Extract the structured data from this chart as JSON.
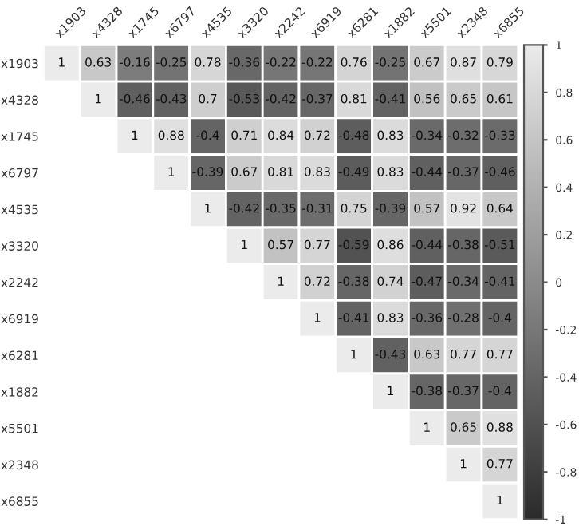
{
  "chart_data": {
    "type": "heatmap",
    "categories": [
      "x1903",
      "x4328",
      "x1745",
      "x6797",
      "x4535",
      "x3320",
      "x2242",
      "x6919",
      "x6281",
      "x1882",
      "x5501",
      "x2348",
      "x6855"
    ],
    "y_categories": [
      "x1903",
      "x4328",
      "x1745",
      "x6797",
      "x4535",
      "x3320",
      "x2242",
      "x6919",
      "x6281",
      "x1882",
      "x5501",
      "x2348",
      "x6855"
    ],
    "cells": [
      [
        1,
        0.63,
        -0.16,
        -0.25,
        0.78,
        -0.36,
        -0.22,
        -0.22,
        0.76,
        -0.25,
        0.67,
        0.87,
        0.79
      ],
      [
        null,
        1,
        -0.46,
        -0.43,
        0.7,
        -0.53,
        -0.42,
        -0.37,
        0.81,
        -0.41,
        0.56,
        0.65,
        0.61
      ],
      [
        null,
        null,
        1,
        0.88,
        -0.4,
        0.71,
        0.84,
        0.72,
        -0.48,
        0.83,
        -0.34,
        -0.32,
        -0.33
      ],
      [
        null,
        null,
        null,
        1,
        -0.39,
        0.67,
        0.81,
        0.83,
        -0.49,
        0.83,
        -0.44,
        -0.37,
        -0.46
      ],
      [
        null,
        null,
        null,
        null,
        1,
        -0.42,
        -0.35,
        -0.31,
        0.75,
        -0.39,
        0.57,
        0.92,
        0.64
      ],
      [
        null,
        null,
        null,
        null,
        null,
        1,
        0.57,
        0.77,
        -0.59,
        0.86,
        -0.44,
        -0.38,
        -0.51
      ],
      [
        null,
        null,
        null,
        null,
        null,
        null,
        1,
        0.72,
        -0.38,
        0.74,
        -0.47,
        -0.34,
        -0.41
      ],
      [
        null,
        null,
        null,
        null,
        null,
        null,
        null,
        1,
        -0.41,
        0.83,
        -0.36,
        -0.28,
        -0.4
      ],
      [
        null,
        null,
        null,
        null,
        null,
        null,
        null,
        null,
        1,
        -0.43,
        0.63,
        0.77,
        0.77
      ],
      [
        null,
        null,
        null,
        null,
        null,
        null,
        null,
        null,
        null,
        1,
        -0.38,
        -0.37,
        -0.4
      ],
      [
        null,
        null,
        null,
        null,
        null,
        null,
        null,
        null,
        null,
        null,
        1,
        0.65,
        0.88
      ],
      [
        null,
        null,
        null,
        null,
        null,
        null,
        null,
        null,
        null,
        null,
        null,
        1,
        0.77
      ],
      [
        null,
        null,
        null,
        null,
        null,
        null,
        null,
        null,
        null,
        null,
        null,
        null,
        1
      ]
    ],
    "clim": [
      -1,
      1
    ],
    "cticks": [
      -1,
      -0.8,
      -0.6,
      -0.4,
      -0.2,
      0,
      0.2,
      0.4,
      0.6,
      0.8,
      1
    ],
    "data_labels": true
  }
}
